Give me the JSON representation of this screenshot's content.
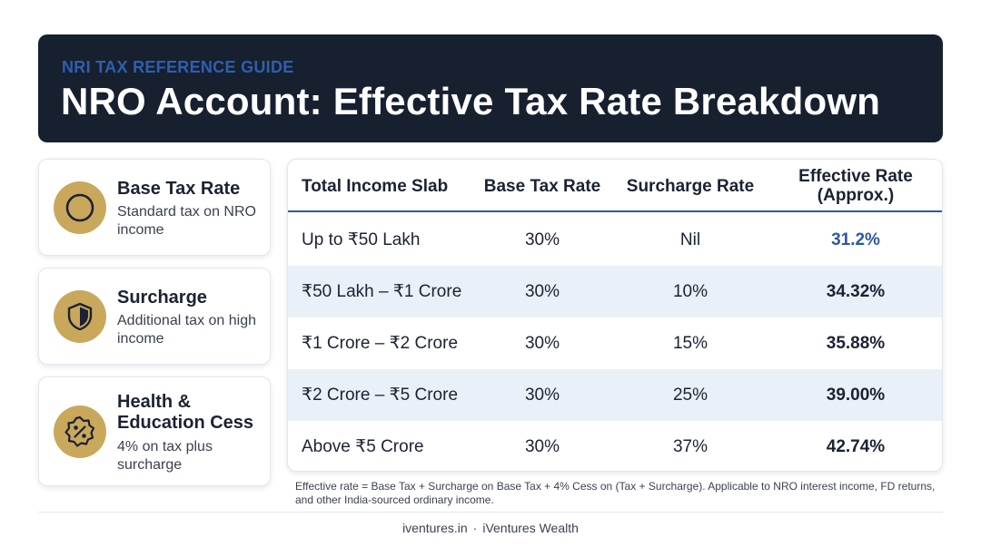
{
  "header": {
    "kicker": "NRI TAX REFERENCE GUIDE",
    "title": "NRO Account: Effective Tax Rate Breakdown"
  },
  "cards": [
    {
      "icon": "circle-icon",
      "title": "Base Tax Rate",
      "desc": "Standard tax on NRO income"
    },
    {
      "icon": "shield-icon",
      "title": "Surcharge",
      "desc": "Additional tax on high income"
    },
    {
      "icon": "percent-badge-icon",
      "title": "Health & Education Cess",
      "desc": "4% on tax plus surcharge"
    }
  ],
  "table": {
    "headers": [
      "Total Income Slab",
      "Base Tax Rate",
      "Surcharge Rate",
      "Effective Rate (Approx.)"
    ],
    "rows": [
      [
        "Up to ₹50 Lakh",
        "30%",
        "Nil",
        "31.2%"
      ],
      [
        "₹50 Lakh – ₹1 Crore",
        "30%",
        "10%",
        "34.32%"
      ],
      [
        "₹1 Crore – ₹2 Crore",
        "30%",
        "15%",
        "35.88%"
      ],
      [
        "₹2 Crore – ₹5 Crore",
        "30%",
        "25%",
        "39.00%"
      ],
      [
        "Above ₹5 Crore",
        "30%",
        "37%",
        "42.74%"
      ]
    ]
  },
  "footnote": "Effective rate = Base Tax + Surcharge on Base Tax + 4% Cess on (Tax + Surcharge). Applicable to NRO interest income, FD returns, and other India-sourced ordinary income.",
  "footer": {
    "site": "iventures.in",
    "separator": "·",
    "brand": "iVentures Wealth"
  },
  "colors": {
    "banner": "#17202f",
    "accent": "#2d57a8",
    "gold": "#c9a85c",
    "row_alt": "#eaf0f8"
  }
}
